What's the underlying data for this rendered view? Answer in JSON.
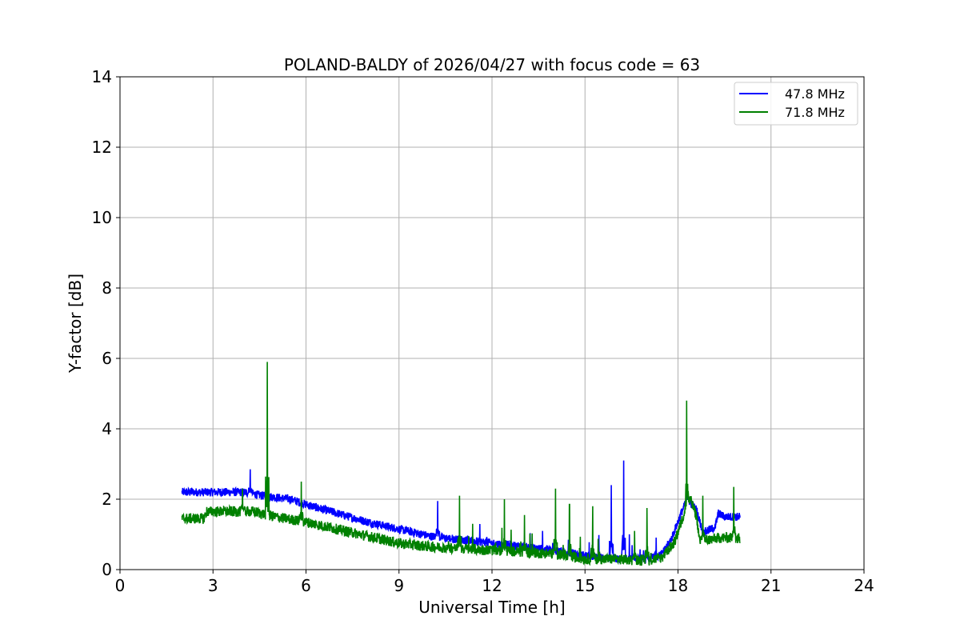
{
  "chart_data": {
    "type": "line",
    "title": "POLAND-BALDY of 2026/04/27 with focus code = 63",
    "xlabel": "Universal Time [h]",
    "ylabel": "Y-factor [dB]",
    "xlim": [
      0,
      24
    ],
    "ylim": [
      0,
      14
    ],
    "xticks": [
      "0",
      "3",
      "6",
      "9",
      "12",
      "15",
      "18",
      "21",
      "24"
    ],
    "yticks": [
      "0",
      "2",
      "4",
      "6",
      "8",
      "10",
      "12",
      "14"
    ],
    "grid": true,
    "legend_position": "top-right",
    "series": [
      {
        "name": "47.8 MHz",
        "color": "#0000ff",
        "baseline": [
          [
            2.0,
            2.2
          ],
          [
            3.0,
            2.2
          ],
          [
            4.0,
            2.2
          ],
          [
            4.6,
            2.1
          ],
          [
            5.5,
            2.0
          ],
          [
            6.0,
            1.85
          ],
          [
            7.0,
            1.6
          ],
          [
            8.0,
            1.35
          ],
          [
            9.0,
            1.15
          ],
          [
            10.0,
            0.95
          ],
          [
            11.0,
            0.85
          ],
          [
            12.0,
            0.75
          ],
          [
            13.0,
            0.65
          ],
          [
            14.0,
            0.55
          ],
          [
            15.0,
            0.4
          ],
          [
            16.0,
            0.3
          ],
          [
            17.0,
            0.3
          ],
          [
            17.5,
            0.45
          ],
          [
            17.8,
            0.9
          ],
          [
            18.1,
            1.6
          ],
          [
            18.3,
            2.0
          ],
          [
            18.6,
            1.7
          ],
          [
            18.8,
            1.05
          ],
          [
            19.2,
            1.2
          ],
          [
            19.3,
            1.6
          ],
          [
            19.5,
            1.5
          ],
          [
            20.0,
            1.5
          ]
        ],
        "spikes": [
          [
            4.2,
            2.85
          ],
          [
            10.25,
            1.95
          ],
          [
            15.85,
            2.4
          ],
          [
            16.25,
            3.1
          ],
          [
            18.3,
            2.3
          ]
        ],
        "noise": 0.12
      },
      {
        "name": "71.8 MHz",
        "color": "#008000",
        "baseline": [
          [
            2.0,
            1.45
          ],
          [
            2.7,
            1.45
          ],
          [
            2.8,
            1.65
          ],
          [
            3.5,
            1.65
          ],
          [
            4.3,
            1.65
          ],
          [
            5.0,
            1.5
          ],
          [
            6.0,
            1.35
          ],
          [
            7.0,
            1.15
          ],
          [
            8.0,
            0.95
          ],
          [
            9.0,
            0.75
          ],
          [
            10.0,
            0.65
          ],
          [
            11.0,
            0.6
          ],
          [
            12.0,
            0.55
          ],
          [
            13.0,
            0.5
          ],
          [
            14.0,
            0.45
          ],
          [
            15.0,
            0.3
          ],
          [
            16.0,
            0.3
          ],
          [
            17.0,
            0.25
          ],
          [
            17.5,
            0.35
          ],
          [
            17.9,
            0.8
          ],
          [
            18.2,
            1.6
          ],
          [
            18.4,
            2.0
          ],
          [
            18.6,
            1.5
          ],
          [
            18.7,
            0.8
          ],
          [
            19.3,
            0.9
          ],
          [
            20.0,
            0.9
          ]
        ],
        "spikes": [
          [
            3.95,
            2.3
          ],
          [
            4.75,
            5.9
          ],
          [
            5.85,
            2.5
          ],
          [
            10.95,
            2.1
          ],
          [
            12.4,
            2.0
          ],
          [
            13.05,
            1.55
          ],
          [
            14.05,
            2.3
          ],
          [
            14.5,
            1.85
          ],
          [
            15.25,
            1.8
          ],
          [
            16.6,
            1.1
          ],
          [
            17.0,
            1.75
          ],
          [
            18.28,
            4.8
          ],
          [
            18.8,
            2.1
          ],
          [
            19.8,
            2.35
          ]
        ],
        "noise": 0.15
      }
    ]
  }
}
